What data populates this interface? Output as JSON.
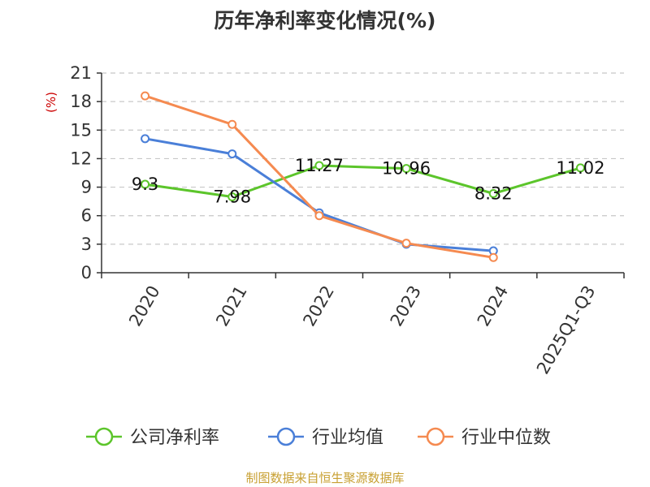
{
  "chart_data": {
    "type": "line",
    "title": "历年净利率变化情况(%)",
    "ylabel": "(%)",
    "xlabel": "",
    "ylim": [
      0,
      21
    ],
    "yticks": [
      0,
      3,
      6,
      9,
      12,
      15,
      18,
      21
    ],
    "grid": true,
    "legend_position": "bottom",
    "categories": [
      "2020",
      "2021",
      "2022",
      "2023",
      "2024",
      "2025Q1-Q3"
    ],
    "series": [
      {
        "name": "公司净利率",
        "color": "#5cc52b",
        "values": [
          9.3,
          7.98,
          11.27,
          10.96,
          8.32,
          11.02
        ],
        "labels": [
          "9.3",
          "7.98",
          "11.27",
          "10.96",
          "8.32",
          "11.02"
        ]
      },
      {
        "name": "行业均值",
        "color": "#4a7fd8",
        "values": [
          14.1,
          12.5,
          6.3,
          3.0,
          2.3,
          null
        ]
      },
      {
        "name": "行业中位数",
        "color": "#f58a50",
        "values": [
          18.6,
          15.6,
          6.0,
          3.1,
          1.6,
          null
        ]
      }
    ]
  },
  "colors": {
    "unit": "#cc0000",
    "source": "#c8a032",
    "axis": "#333333",
    "grid": "#c8c8c8"
  },
  "source_text": "制图数据来自恒生聚源数据库"
}
